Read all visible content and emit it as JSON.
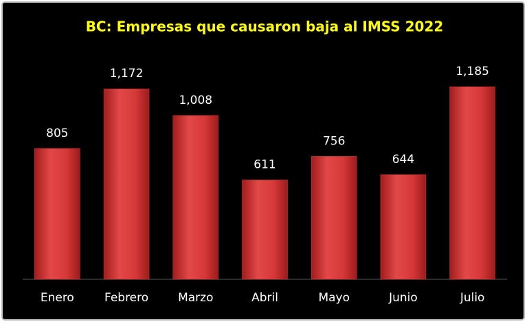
{
  "chart_data": {
    "type": "bar",
    "title": "BC: Empresas que causaron baja al IMSS 2022",
    "categories": [
      "Enero",
      "Febrero",
      "Marzo",
      "Abril",
      "Mayo",
      "Junio",
      "Julio"
    ],
    "values": [
      805,
      1172,
      1008,
      611,
      756,
      644,
      1185
    ],
    "value_labels": [
      "805",
      "1,172",
      "1,008",
      "611",
      "756",
      "644",
      "1,185"
    ],
    "color": "#d93a3a"
  }
}
